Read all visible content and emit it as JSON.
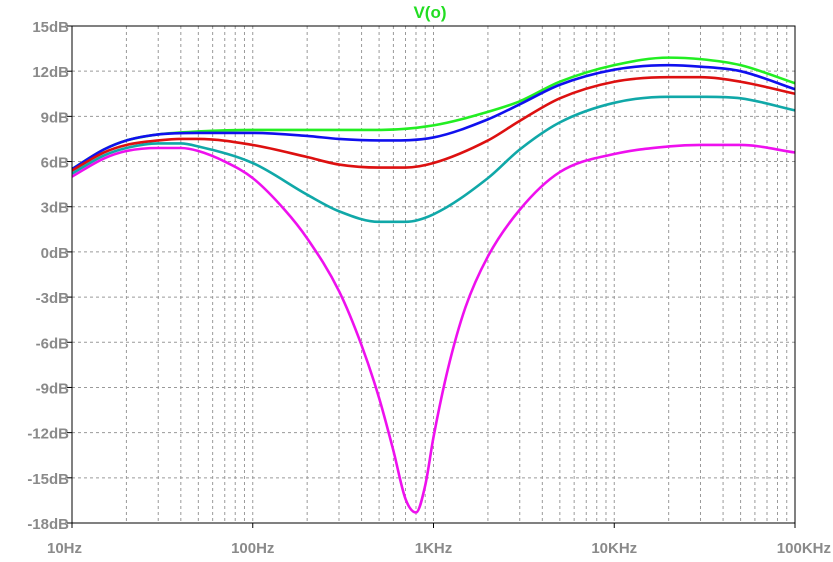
{
  "chart_data": {
    "type": "line",
    "title": "V(o)",
    "title_color": "#22dd22",
    "x_scale": "log",
    "xlim": [
      10,
      100000
    ],
    "ylim": [
      -18,
      15
    ],
    "grid": true,
    "x_ticks": [
      {
        "value": 10,
        "label": "10Hz"
      },
      {
        "value": 100,
        "label": "100Hz"
      },
      {
        "value": 1000,
        "label": "1KHz"
      },
      {
        "value": 10000,
        "label": "10KHz"
      },
      {
        "value": 100000,
        "label": "100KHz"
      }
    ],
    "y_ticks": [
      {
        "value": 15,
        "label": "15dB"
      },
      {
        "value": 12,
        "label": "12dB"
      },
      {
        "value": 9,
        "label": "9dB"
      },
      {
        "value": 6,
        "label": "6dB"
      },
      {
        "value": 3,
        "label": "3dB"
      },
      {
        "value": 0,
        "label": "0dB"
      },
      {
        "value": -3,
        "label": "-3dB"
      },
      {
        "value": -6,
        "label": "-6dB"
      },
      {
        "value": -9,
        "label": "-9dB"
      },
      {
        "value": -12,
        "label": "-12dB"
      },
      {
        "value": -15,
        "label": "-15dB"
      },
      {
        "value": -18,
        "label": "-18dB"
      }
    ],
    "series": [
      {
        "color": "#22ee22",
        "x": [
          10,
          15,
          20,
          30,
          50,
          100,
          200,
          500,
          1000,
          2000,
          3000,
          5000,
          10000,
          20000,
          30000,
          50000,
          100000
        ],
        "y": [
          5.5,
          6.8,
          7.4,
          7.8,
          8.0,
          8.1,
          8.1,
          8.1,
          8.4,
          9.3,
          10.0,
          11.3,
          12.4,
          12.9,
          12.8,
          12.4,
          11.2
        ]
      },
      {
        "color": "#1010ee",
        "x": [
          10,
          15,
          20,
          30,
          50,
          100,
          200,
          300,
          500,
          1000,
          2000,
          3000,
          5000,
          10000,
          20000,
          30000,
          50000,
          100000
        ],
        "y": [
          5.5,
          6.8,
          7.4,
          7.8,
          7.9,
          7.9,
          7.7,
          7.5,
          7.4,
          7.6,
          8.8,
          9.8,
          11.1,
          12.1,
          12.4,
          12.3,
          12.0,
          10.8
        ]
      },
      {
        "color": "#dd1010",
        "x": [
          10,
          15,
          20,
          30,
          40,
          50,
          100,
          200,
          300,
          500,
          700,
          1000,
          2000,
          3000,
          5000,
          10000,
          20000,
          30000,
          50000,
          100000
        ],
        "y": [
          5.4,
          6.6,
          7.1,
          7.4,
          7.5,
          7.5,
          7.1,
          6.3,
          5.8,
          5.6,
          5.6,
          5.9,
          7.4,
          8.7,
          10.2,
          11.3,
          11.6,
          11.6,
          11.3,
          10.5
        ]
      },
      {
        "color": "#10a8a8",
        "x": [
          10,
          15,
          20,
          30,
          40,
          50,
          100,
          200,
          300,
          500,
          700,
          1000,
          2000,
          3000,
          5000,
          10000,
          20000,
          30000,
          50000,
          100000
        ],
        "y": [
          5.2,
          6.4,
          6.9,
          7.2,
          7.2,
          7.0,
          5.9,
          3.8,
          2.7,
          2.0,
          2.0,
          2.5,
          4.9,
          6.8,
          8.6,
          9.9,
          10.3,
          10.3,
          10.2,
          9.4
        ]
      },
      {
        "color": "#ee10ee",
        "x": [
          10,
          15,
          20,
          30,
          40,
          50,
          70,
          100,
          150,
          200,
          300,
          400,
          500,
          600,
          700,
          800,
          900,
          1000,
          1200,
          1500,
          2000,
          3000,
          5000,
          10000,
          20000,
          30000,
          50000,
          100000
        ],
        "y": [
          5.0,
          6.2,
          6.7,
          6.9,
          6.9,
          6.7,
          6.0,
          4.9,
          2.8,
          0.9,
          -2.6,
          -6.2,
          -9.7,
          -13.2,
          -16.4,
          -17.3,
          -15.5,
          -12.3,
          -7.8,
          -3.7,
          -0.3,
          2.8,
          5.3,
          6.5,
          7.0,
          7.1,
          7.1,
          6.6
        ]
      }
    ]
  }
}
